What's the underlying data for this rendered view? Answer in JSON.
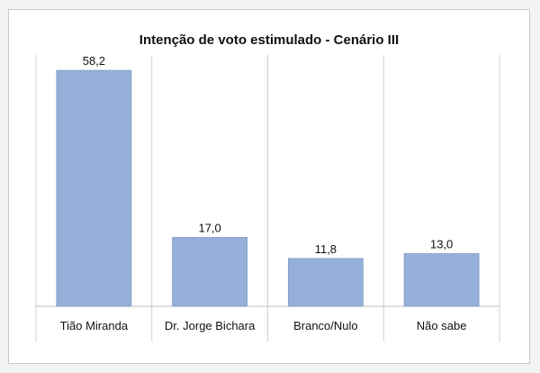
{
  "chart_data": {
    "type": "bar",
    "title": "Intenção de voto estimulado - Cenário III",
    "categories": [
      "Tião Miranda",
      "Dr. Jorge Bichara",
      "Branco/Nulo",
      "Não sabe"
    ],
    "values": [
      58.2,
      17.0,
      11.8,
      13.0
    ],
    "value_labels": [
      "58,2",
      "17,0",
      "11,8",
      "13,0"
    ],
    "xlabel": "",
    "ylabel": "",
    "ylim": [
      0,
      62
    ],
    "grid": false,
    "legend": "none",
    "bar_color": "#95b0d8",
    "bar_border_color": "#7f9cc8"
  }
}
